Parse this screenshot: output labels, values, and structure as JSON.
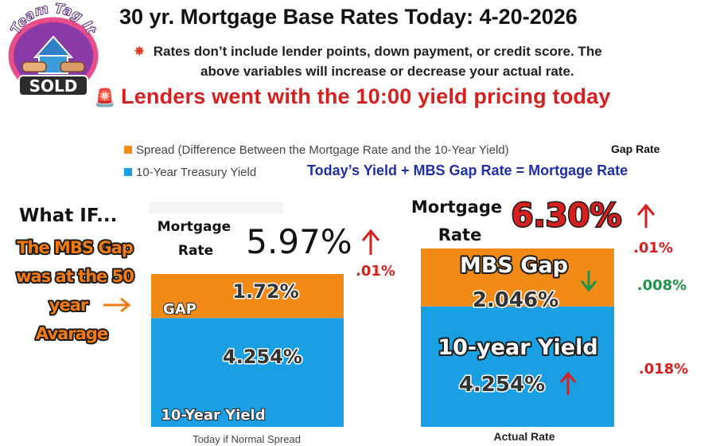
{
  "header": {
    "title": "30 yr. Mortgage Base Rates Today: 4-20-2026",
    "note_line1": "Rates don’t include lender points, down payment, or credit score. The",
    "note_line2": "above variables will increase or decrease your actual rate.",
    "headline": "Lenders went with the 10:00 yield pricing today",
    "note_icon": "collision-icon",
    "headline_icon": "siren-icon"
  },
  "logo": {
    "top_text": "Team Tag It",
    "badge_text": "SOLD"
  },
  "legend_extra": {
    "gap_rate": "Gap Rate",
    "formula": "Today’s  Yield +  MBS Gap Rate = Mortgage Rate"
  },
  "annotations": {
    "what_if": "What IF...",
    "what_if_body": [
      "The MBS Gap",
      "was at the 50",
      "year",
      "Avarage"
    ],
    "left_mortgage_label": [
      "Mortgage",
      "Rate"
    ],
    "left_mortgage_value": "5.97%",
    "left_change": ".01%",
    "right_mortgage_label": [
      "Mortgage",
      "Rate"
    ],
    "right_mortgage_value": "6.30%",
    "right_top_change": ".01%",
    "gap_change": ".008%",
    "yield_change": ".018%",
    "gap_label_left": "GAP",
    "yield_label_left": "10-Year Yield",
    "mbs_gap_label": "MBS Gap",
    "ten_year_label": "10-year Yield"
  },
  "colors": {
    "spread": "#f28a17",
    "yield": "#1aa0e2",
    "red": "#d61f1f",
    "green": "#1e9447",
    "navy": "#1f2fa8"
  },
  "chart_data": {
    "type": "bar",
    "stacked": true,
    "categories": [
      "Today if Normal Spread",
      "Actual Rate"
    ],
    "series": [
      {
        "name": "10-Year Treasury Yield",
        "values": [
          4.254,
          4.254
        ],
        "labels": [
          "4.254%",
          "4.254%"
        ]
      },
      {
        "name": "Spread (Difference Between the Mortgage Rate and the 10-Year Yield)",
        "values": [
          1.72,
          2.046
        ],
        "labels": [
          "1.72%",
          "2.046%"
        ]
      }
    ],
    "totals": [
      5.97,
      6.3
    ],
    "legend": "top-left"
  }
}
